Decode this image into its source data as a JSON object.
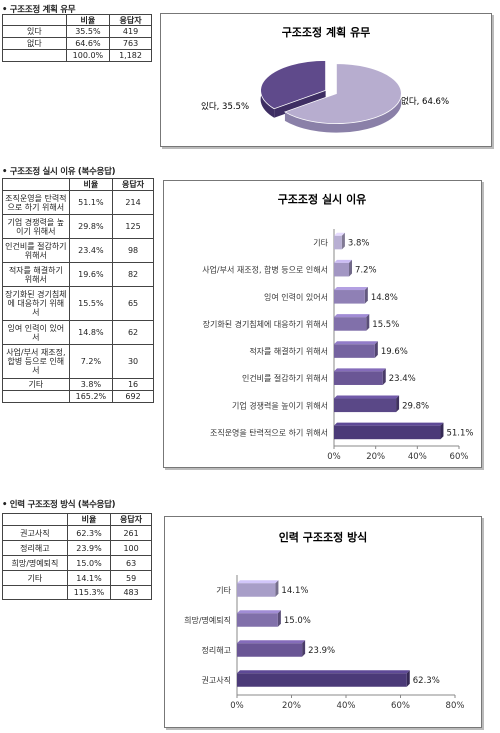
{
  "sections": [
    {
      "title": "• 구조조정 계획 유무",
      "table": {
        "headers": [
          "",
          "비율",
          "응답자"
        ],
        "rows": [
          {
            "label": "있다",
            "pct": "35.5%",
            "n": "419"
          },
          {
            "label": "없다",
            "pct": "64.6%",
            "n": "763"
          }
        ],
        "total": {
          "label": "",
          "pct": "100.0%",
          "n": "1,182"
        }
      }
    },
    {
      "title": "• 구조조정 실시 이유 (복수응답)",
      "table": {
        "headers": [
          "",
          "비율",
          "응답자"
        ],
        "rows": [
          {
            "label": "조직운영을 탄력적으로 하기 위해서",
            "pct": "51.1%",
            "n": "214"
          },
          {
            "label": "기업 경쟁력을 높이기 위해서",
            "pct": "29.8%",
            "n": "125"
          },
          {
            "label": "인건비를 절감하기 위해서",
            "pct": "23.4%",
            "n": "98"
          },
          {
            "label": "적자를 해결하기 위해서",
            "pct": "19.6%",
            "n": "82"
          },
          {
            "label": "장기화된 경기침체에 대응하기 위해서",
            "pct": "15.5%",
            "n": "65"
          },
          {
            "label": "잉여 인력이 있어서",
            "pct": "14.8%",
            "n": "62"
          },
          {
            "label": "사업/부서 재조정, 합병 등으로 인해서",
            "pct": "7.2%",
            "n": "30"
          },
          {
            "label": "기타",
            "pct": "3.8%",
            "n": "16"
          }
        ],
        "total": {
          "label": "",
          "pct": "165.2%",
          "n": "692"
        }
      }
    },
    {
      "title": "• 인력 구조조정 방식 (복수응답)",
      "table": {
        "headers": [
          "",
          "비율",
          "응답자"
        ],
        "rows": [
          {
            "label": "권고사직",
            "pct": "62.3%",
            "n": "261"
          },
          {
            "label": "정리해고",
            "pct": "23.9%",
            "n": "100"
          },
          {
            "label": "희망/명예퇴직",
            "pct": "15.0%",
            "n": "63"
          },
          {
            "label": "기타",
            "pct": "14.1%",
            "n": "59"
          }
        ],
        "total": {
          "label": "",
          "pct": "115.3%",
          "n": "483"
        }
      }
    }
  ],
  "chart_data": [
    {
      "type": "pie",
      "title": "구조조정 계획 유무",
      "categories": [
        "있다",
        "없다"
      ],
      "values": [
        35.5,
        64.6
      ],
      "data_labels": [
        "있다, 35.5%",
        "없다, 64.6%"
      ],
      "colors": [
        "#5f4a8b",
        "#b7adcf"
      ]
    },
    {
      "type": "bar",
      "orientation": "horizontal",
      "title": "구조조정 실시 이유",
      "categories": [
        "조직운영을 탄력적으로 하기 위해서",
        "기업 경쟁력을 높이기 위해서",
        "인건비를 절감하기 위해서",
        "적자를 해결하기 위해서",
        "장기화된 경기침체에 대응하기 위해서",
        "잉여 인력이 있어서",
        "사업/부서 재조정, 합병 등으로 인해서",
        "기타"
      ],
      "values": [
        51.1,
        29.8,
        23.4,
        19.6,
        15.5,
        14.8,
        7.2,
        3.8
      ],
      "data_labels": [
        "51.1%",
        "29.8%",
        "23.4%",
        "19.6%",
        "15.5%",
        "14.8%",
        "7.2%",
        "3.8%"
      ],
      "xlim": [
        0,
        60
      ],
      "ticks": [
        "0%",
        "20%",
        "40%",
        "60%"
      ],
      "tick_values": [
        0,
        20,
        40,
        60
      ]
    },
    {
      "type": "bar",
      "orientation": "horizontal",
      "title": "인력 구조조정 방식",
      "categories": [
        "권고사직",
        "정리해고",
        "희망/명예퇴직",
        "기타"
      ],
      "values": [
        62.3,
        23.9,
        15.0,
        14.1
      ],
      "data_labels": [
        "62.3%",
        "23.9%",
        "15.0%",
        "14.1%"
      ],
      "xlim": [
        0,
        80
      ],
      "ticks": [
        "0%",
        "20%",
        "40%",
        "60%",
        "80%"
      ],
      "tick_values": [
        0,
        20,
        40,
        60,
        80
      ]
    }
  ]
}
